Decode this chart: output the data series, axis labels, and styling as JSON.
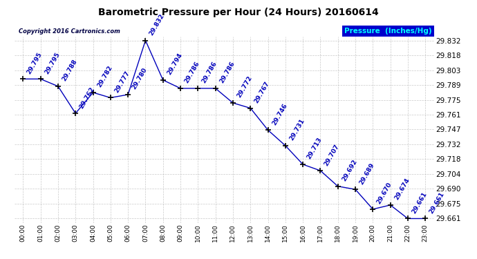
{
  "title": "Barometric Pressure per Hour (24 Hours) 20160614",
  "copyright_text": "Copyright 2016 Cartronics.com",
  "legend_label": "Pressure  (Inches/Hg)",
  "hours": [
    0,
    1,
    2,
    3,
    4,
    5,
    6,
    7,
    8,
    9,
    10,
    11,
    12,
    13,
    14,
    15,
    16,
    17,
    18,
    19,
    20,
    21,
    22,
    23
  ],
  "values": [
    29.795,
    29.795,
    29.788,
    29.762,
    29.782,
    29.777,
    29.78,
    29.832,
    29.794,
    29.786,
    29.786,
    29.786,
    29.772,
    29.767,
    29.746,
    29.731,
    29.713,
    29.707,
    29.692,
    29.689,
    29.67,
    29.674,
    29.661,
    29.661
  ],
  "ylim_min": 29.657,
  "ylim_max": 29.836,
  "yticks": [
    29.832,
    29.818,
    29.803,
    29.789,
    29.775,
    29.761,
    29.747,
    29.732,
    29.718,
    29.704,
    29.69,
    29.675,
    29.661
  ],
  "line_color": "#0000bb",
  "marker_color": "#000000",
  "label_color": "#0000bb",
  "background_color": "#ffffff",
  "grid_color": "#bbbbbb",
  "title_color": "#000000",
  "legend_bg": "#0000cc",
  "legend_text_color": "#00ffff",
  "copyright_color": "#000044"
}
